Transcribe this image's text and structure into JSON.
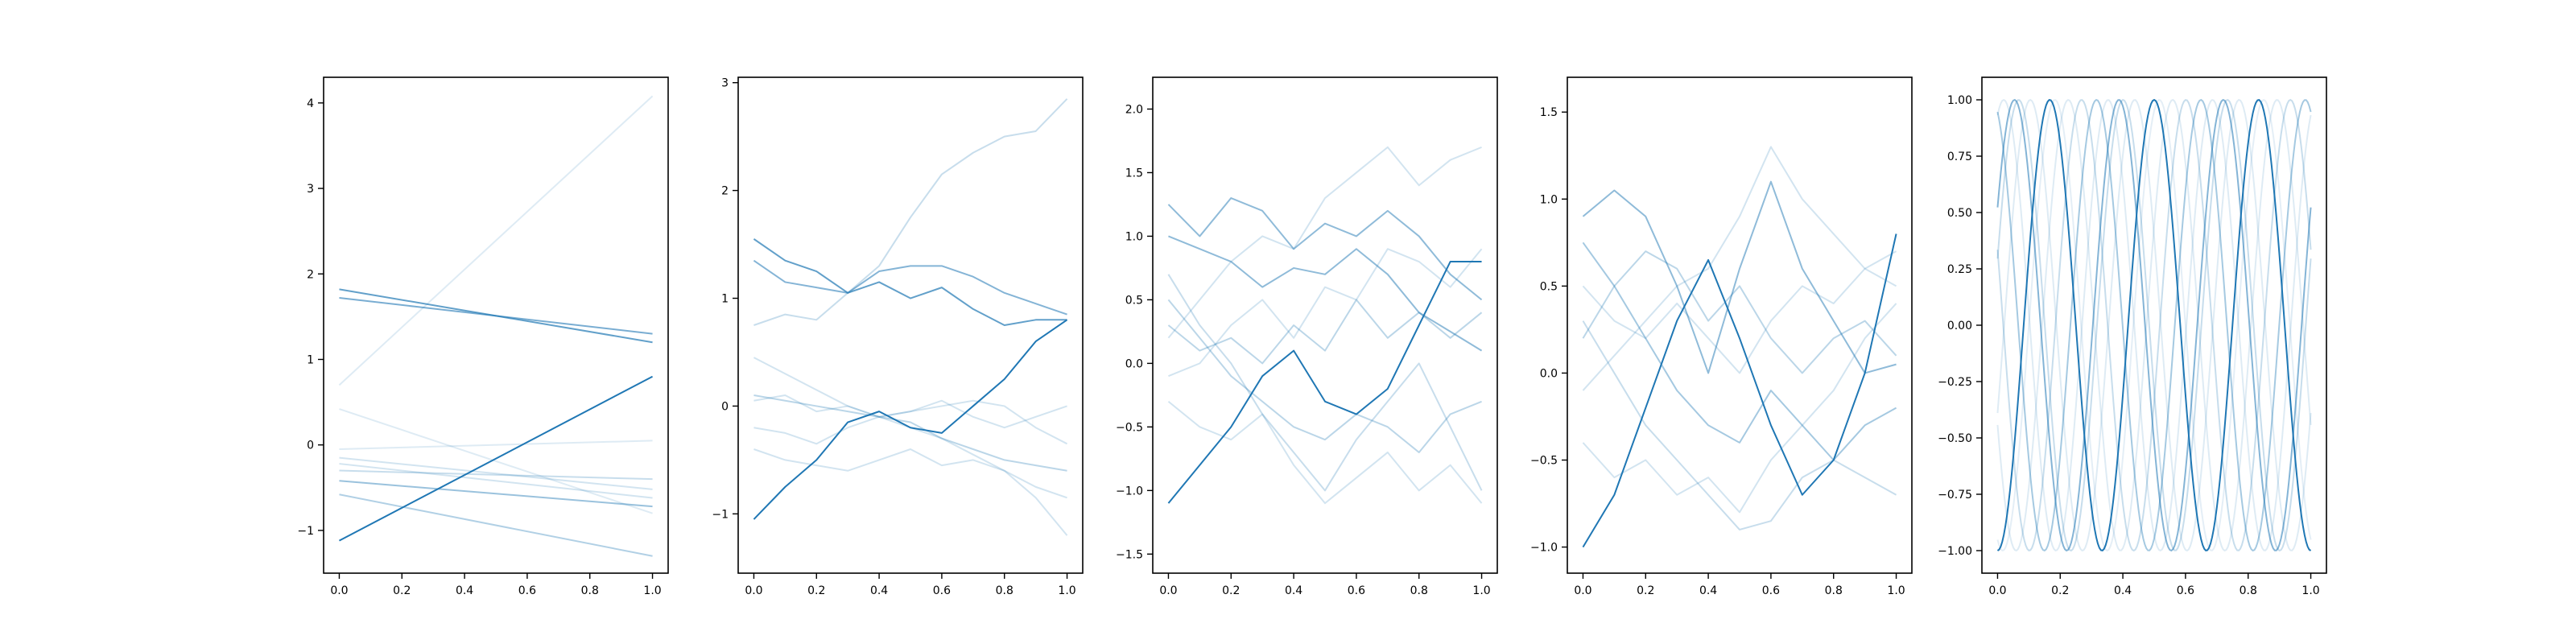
{
  "figure": {
    "background": "#ffffff",
    "series_color": "#1f77b4"
  },
  "chart_data": [
    {
      "type": "line",
      "subtype": "straight lines",
      "xlim": [
        0,
        1
      ],
      "ylim": [
        -1.5,
        4.3
      ],
      "xticks": [
        "0.0",
        "0.2",
        "0.4",
        "0.6",
        "0.8",
        "1.0"
      ],
      "yticks": [
        "−1",
        "0",
        "1",
        "2",
        "3",
        "4"
      ],
      "series": [
        {
          "opacity": 0.15,
          "x": [
            0,
            1
          ],
          "y": [
            0.7,
            4.08
          ]
        },
        {
          "opacity": 0.15,
          "x": [
            0,
            1
          ],
          "y": [
            0.42,
            -0.8
          ]
        },
        {
          "opacity": 0.15,
          "x": [
            0,
            1
          ],
          "y": [
            -0.05,
            0.05
          ]
        },
        {
          "opacity": 0.2,
          "x": [
            0,
            1
          ],
          "y": [
            -0.15,
            -0.52
          ]
        },
        {
          "opacity": 0.2,
          "x": [
            0,
            1
          ],
          "y": [
            -0.22,
            -0.62
          ]
        },
        {
          "opacity": 0.25,
          "x": [
            0,
            1
          ],
          "y": [
            -0.3,
            -0.4
          ]
        },
        {
          "opacity": 0.35,
          "x": [
            0,
            1
          ],
          "y": [
            -0.58,
            -1.3
          ]
        },
        {
          "opacity": 0.45,
          "x": [
            0,
            1
          ],
          "y": [
            -0.42,
            -0.72
          ]
        },
        {
          "opacity": 0.6,
          "x": [
            0,
            1
          ],
          "y": [
            1.72,
            1.3
          ]
        },
        {
          "opacity": 0.7,
          "x": [
            0,
            1
          ],
          "y": [
            1.82,
            1.2
          ]
        },
        {
          "opacity": 1.0,
          "x": [
            0,
            1
          ],
          "y": [
            -1.12,
            0.8
          ]
        }
      ]
    },
    {
      "type": "line",
      "subtype": "random walks",
      "xlim": [
        0,
        1
      ],
      "ylim": [
        -1.55,
        3.05
      ],
      "xticks": [
        "0.0",
        "0.2",
        "0.4",
        "0.6",
        "0.8",
        "1.0"
      ],
      "yticks": [
        "−1",
        "0",
        "1",
        "2",
        "3"
      ],
      "series": [
        {
          "opacity": 0.25,
          "x": [
            0,
            0.1,
            0.2,
            0.3,
            0.4,
            0.5,
            0.6,
            0.7,
            0.8,
            0.9,
            1.0
          ],
          "y": [
            0.75,
            0.85,
            0.8,
            1.05,
            1.3,
            1.75,
            2.15,
            2.35,
            2.5,
            2.55,
            2.85
          ]
        },
        {
          "opacity": 0.55,
          "x": [
            0,
            0.1,
            0.2,
            0.3,
            0.4,
            0.5,
            0.6,
            0.7,
            0.8,
            0.9,
            1.0
          ],
          "y": [
            1.35,
            1.15,
            1.1,
            1.05,
            1.25,
            1.3,
            1.3,
            1.2,
            1.05,
            0.95,
            0.85
          ]
        },
        {
          "opacity": 0.7,
          "x": [
            0,
            0.1,
            0.2,
            0.3,
            0.4,
            0.5,
            0.6,
            0.7,
            0.8,
            0.9,
            1.0
          ],
          "y": [
            1.55,
            1.35,
            1.25,
            1.05,
            1.15,
            1.0,
            1.1,
            0.9,
            0.75,
            0.8,
            0.8
          ]
        },
        {
          "opacity": 0.2,
          "x": [
            0,
            0.1,
            0.2,
            0.3,
            0.4,
            0.5,
            0.6,
            0.7,
            0.8,
            0.9,
            1.0
          ],
          "y": [
            0.05,
            0.1,
            -0.05,
            0.0,
            -0.1,
            -0.2,
            -0.3,
            -0.45,
            -0.6,
            -0.85,
            -1.2
          ]
        },
        {
          "opacity": 0.2,
          "x": [
            0,
            0.1,
            0.2,
            0.3,
            0.4,
            0.5,
            0.6,
            0.7,
            0.8,
            0.9,
            1.0
          ],
          "y": [
            -0.4,
            -0.5,
            -0.55,
            -0.6,
            -0.5,
            -0.4,
            -0.55,
            -0.5,
            -0.6,
            -0.75,
            -0.85
          ]
        },
        {
          "opacity": 0.3,
          "x": [
            0,
            0.1,
            0.2,
            0.3,
            0.4,
            0.5,
            0.6,
            0.7,
            0.8,
            0.9,
            1.0
          ],
          "y": [
            0.1,
            0.05,
            0.0,
            -0.05,
            -0.1,
            -0.15,
            -0.3,
            -0.4,
            -0.5,
            -0.55,
            -0.6
          ]
        },
        {
          "opacity": 0.2,
          "x": [
            0,
            0.1,
            0.2,
            0.3,
            0.4,
            0.5,
            0.6,
            0.7,
            0.8,
            0.9,
            1.0
          ],
          "y": [
            -0.2,
            -0.25,
            -0.35,
            -0.2,
            -0.1,
            -0.05,
            0.05,
            -0.1,
            -0.2,
            -0.1,
            0.0
          ]
        },
        {
          "opacity": 0.2,
          "x": [
            0,
            0.1,
            0.2,
            0.3,
            0.4,
            0.5,
            0.6,
            0.7,
            0.8,
            0.9,
            1.0
          ],
          "y": [
            0.45,
            0.3,
            0.15,
            0.0,
            -0.1,
            -0.05,
            0.0,
            0.05,
            0.0,
            -0.2,
            -0.35
          ]
        },
        {
          "opacity": 1.0,
          "x": [
            0,
            0.1,
            0.2,
            0.3,
            0.4,
            0.5,
            0.6,
            0.7,
            0.8,
            0.9,
            1.0
          ],
          "y": [
            -1.05,
            -0.75,
            -0.5,
            -0.15,
            -0.05,
            -0.2,
            -0.25,
            0.0,
            0.25,
            0.6,
            0.8
          ]
        }
      ]
    },
    {
      "type": "line",
      "subtype": "noisy walks",
      "xlim": [
        0,
        1
      ],
      "ylim": [
        -1.65,
        2.25
      ],
      "xticks": [
        "0.0",
        "0.2",
        "0.4",
        "0.6",
        "0.8",
        "1.0"
      ],
      "yticks": [
        "−1.5",
        "−1.0",
        "−0.5",
        "0.0",
        "0.5",
        "1.0",
        "1.5",
        "2.0"
      ],
      "series": [
        {
          "opacity": 0.2,
          "x": [
            0,
            0.1,
            0.2,
            0.3,
            0.4,
            0.5,
            0.6,
            0.7,
            0.8,
            0.9,
            1.0
          ],
          "y": [
            0.2,
            0.5,
            0.8,
            1.0,
            0.9,
            1.3,
            1.5,
            1.7,
            1.4,
            1.6,
            1.7
          ]
        },
        {
          "opacity": 0.5,
          "x": [
            0,
            0.1,
            0.2,
            0.3,
            0.4,
            0.5,
            0.6,
            0.7,
            0.8,
            0.9,
            1.0
          ],
          "y": [
            1.25,
            1.0,
            1.3,
            1.2,
            0.9,
            1.1,
            1.0,
            1.2,
            1.0,
            0.7,
            0.5
          ]
        },
        {
          "opacity": 0.5,
          "x": [
            0,
            0.1,
            0.2,
            0.3,
            0.4,
            0.5,
            0.6,
            0.7,
            0.8,
            0.9,
            1.0
          ],
          "y": [
            1.0,
            0.9,
            0.8,
            0.6,
            0.75,
            0.7,
            0.9,
            0.7,
            0.4,
            0.25,
            0.1
          ]
        },
        {
          "opacity": 0.25,
          "x": [
            0,
            0.1,
            0.2,
            0.3,
            0.4,
            0.5,
            0.6,
            0.7,
            0.8,
            0.9,
            1.0
          ],
          "y": [
            0.7,
            0.3,
            0.0,
            -0.4,
            -0.7,
            -1.0,
            -0.6,
            -0.3,
            0.0,
            -0.5,
            -1.0
          ]
        },
        {
          "opacity": 0.2,
          "x": [
            0,
            0.1,
            0.2,
            0.3,
            0.4,
            0.5,
            0.6,
            0.7,
            0.8,
            0.9,
            1.0
          ],
          "y": [
            -0.3,
            -0.5,
            -0.6,
            -0.4,
            -0.8,
            -1.1,
            -0.9,
            -0.7,
            -1.0,
            -0.8,
            -1.1
          ]
        },
        {
          "opacity": 0.3,
          "x": [
            0,
            0.1,
            0.2,
            0.3,
            0.4,
            0.5,
            0.6,
            0.7,
            0.8,
            0.9,
            1.0
          ],
          "y": [
            0.3,
            0.1,
            0.2,
            0.0,
            0.3,
            0.1,
            0.5,
            0.2,
            0.4,
            0.2,
            0.4
          ]
        },
        {
          "opacity": 0.2,
          "x": [
            0,
            0.1,
            0.2,
            0.3,
            0.4,
            0.5,
            0.6,
            0.7,
            0.8,
            0.9,
            1.0
          ],
          "y": [
            -0.1,
            0.0,
            0.3,
            0.5,
            0.2,
            0.6,
            0.5,
            0.9,
            0.8,
            0.6,
            0.9
          ]
        },
        {
          "opacity": 0.3,
          "x": [
            0,
            0.1,
            0.2,
            0.3,
            0.4,
            0.5,
            0.6,
            0.7,
            0.8,
            0.9,
            1.0
          ],
          "y": [
            0.5,
            0.2,
            -0.1,
            -0.3,
            -0.5,
            -0.6,
            -0.4,
            -0.5,
            -0.7,
            -0.4,
            -0.3
          ]
        },
        {
          "opacity": 1.0,
          "x": [
            0,
            0.1,
            0.2,
            0.3,
            0.4,
            0.5,
            0.6,
            0.7,
            0.8,
            0.9,
            1.0
          ],
          "y": [
            -1.1,
            -0.8,
            -0.5,
            -0.1,
            0.1,
            -0.3,
            -0.4,
            -0.2,
            0.3,
            0.8,
            0.8
          ]
        }
      ]
    },
    {
      "type": "line",
      "subtype": "noisy walks",
      "xlim": [
        0,
        1
      ],
      "ylim": [
        -1.15,
        1.7
      ],
      "xticks": [
        "0.0",
        "0.2",
        "0.4",
        "0.6",
        "0.8",
        "1.0"
      ],
      "yticks": [
        "−1.0",
        "−0.5",
        "0.0",
        "0.5",
        "1.0",
        "1.5"
      ],
      "series": [
        {
          "opacity": 0.5,
          "x": [
            0,
            0.1,
            0.2,
            0.3,
            0.4,
            0.5,
            0.6,
            0.7,
            0.8,
            0.9,
            1.0
          ],
          "y": [
            0.9,
            1.05,
            0.9,
            0.5,
            0.0,
            0.6,
            1.1,
            0.6,
            0.3,
            0.0,
            0.05
          ]
        },
        {
          "opacity": 0.4,
          "x": [
            0,
            0.1,
            0.2,
            0.3,
            0.4,
            0.5,
            0.6,
            0.7,
            0.8,
            0.9,
            1.0
          ],
          "y": [
            0.75,
            0.5,
            0.2,
            -0.1,
            -0.3,
            -0.4,
            -0.1,
            -0.3,
            -0.5,
            -0.3,
            -0.2
          ]
        },
        {
          "opacity": 0.25,
          "x": [
            0,
            0.1,
            0.2,
            0.3,
            0.4,
            0.5,
            0.6,
            0.7,
            0.8,
            0.9,
            1.0
          ],
          "y": [
            0.3,
            0.0,
            -0.3,
            -0.5,
            -0.7,
            -0.9,
            -0.85,
            -0.6,
            -0.5,
            -0.6,
            -0.7
          ]
        },
        {
          "opacity": 0.2,
          "x": [
            0,
            0.1,
            0.2,
            0.3,
            0.4,
            0.5,
            0.6,
            0.7,
            0.8,
            0.9,
            1.0
          ],
          "y": [
            -0.1,
            0.1,
            0.3,
            0.5,
            0.6,
            0.9,
            1.3,
            1.0,
            0.8,
            0.6,
            0.7
          ]
        },
        {
          "opacity": 0.2,
          "x": [
            0,
            0.1,
            0.2,
            0.3,
            0.4,
            0.5,
            0.6,
            0.7,
            0.8,
            0.9,
            1.0
          ],
          "y": [
            0.5,
            0.3,
            0.2,
            0.4,
            0.2,
            0.0,
            0.3,
            0.5,
            0.4,
            0.6,
            0.5
          ]
        },
        {
          "opacity": 0.2,
          "x": [
            0,
            0.1,
            0.2,
            0.3,
            0.4,
            0.5,
            0.6,
            0.7,
            0.8,
            0.9,
            1.0
          ],
          "y": [
            -0.4,
            -0.6,
            -0.5,
            -0.7,
            -0.6,
            -0.8,
            -0.5,
            -0.3,
            -0.1,
            0.2,
            0.4
          ]
        },
        {
          "opacity": 0.3,
          "x": [
            0,
            0.1,
            0.2,
            0.3,
            0.4,
            0.5,
            0.6,
            0.7,
            0.8,
            0.9,
            1.0
          ],
          "y": [
            0.2,
            0.5,
            0.7,
            0.6,
            0.3,
            0.5,
            0.2,
            0.0,
            0.2,
            0.3,
            0.1
          ]
        },
        {
          "opacity": 1.0,
          "x": [
            0,
            0.1,
            0.2,
            0.3,
            0.4,
            0.5,
            0.6,
            0.7,
            0.8,
            0.9,
            1.0
          ],
          "y": [
            -1.0,
            -0.7,
            -0.2,
            0.3,
            0.65,
            0.2,
            -0.3,
            -0.7,
            -0.5,
            0.0,
            0.8
          ]
        }
      ]
    },
    {
      "type": "line",
      "subtype": "sinusoids",
      "xlim": [
        0,
        1
      ],
      "ylim": [
        -1.1,
        1.1
      ],
      "xticks": [
        "0.0",
        "0.2",
        "0.4",
        "0.6",
        "0.8",
        "1.0"
      ],
      "yticks": [
        "−1.00",
        "−0.75",
        "−0.50",
        "−0.25",
        "0.00",
        "0.25",
        "0.50",
        "0.75",
        "1.00"
      ],
      "curves": [
        {
          "opacity": 1.0,
          "amplitude": 1,
          "periods": 3.0,
          "phase": -1.5708
        },
        {
          "opacity": 0.55,
          "amplitude": 1,
          "periods": 3.0,
          "phase": 0.55
        },
        {
          "opacity": 0.4,
          "amplitude": 1,
          "periods": 3.0,
          "phase": 1.9
        },
        {
          "opacity": 0.25,
          "amplitude": 1,
          "periods": 3.0,
          "phase": 0.3
        },
        {
          "opacity": 0.25,
          "amplitude": 1,
          "periods": 3.0,
          "phase": 2.8
        },
        {
          "opacity": 0.15,
          "amplitude": 1,
          "periods": 3.0,
          "phase": 1.2
        },
        {
          "opacity": 0.15,
          "amplitude": 1,
          "periods": 3.0,
          "phase": -0.4
        },
        {
          "opacity": 0.15,
          "amplitude": 1,
          "periods": 3.0,
          "phase": 3.6
        },
        {
          "opacity": 0.12,
          "amplitude": 1,
          "periods": 3.0,
          "phase": 4.4
        }
      ]
    }
  ]
}
